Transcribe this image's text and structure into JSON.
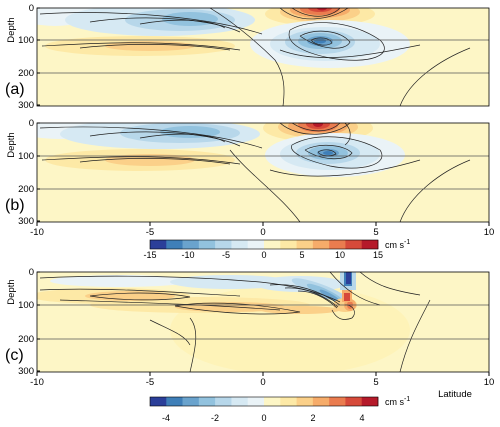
{
  "palette": [
    "#2b3f99",
    "#3f7fb8",
    "#6aa3cd",
    "#92c2de",
    "#b7d7ea",
    "#d6e9f3",
    "#eaf3f7",
    "#fdf6c6",
    "#fde9a6",
    "#fbd089",
    "#f6ac6a",
    "#ea7c4f",
    "#d64a3a",
    "#b51a2a"
  ],
  "chart_data": [
    {
      "panel": "(a)",
      "type": "heatmap",
      "ylabel": "Depth",
      "xlim": [
        -10,
        10
      ],
      "ylim": [
        300,
        0
      ],
      "yticks": [
        "0",
        "100",
        "200",
        "300"
      ],
      "gridlines_y": [
        100,
        200
      ],
      "features": [
        {
          "x": 2.5,
          "depth": 5,
          "value": 14
        },
        {
          "x": -4.5,
          "depth": 25,
          "value": -5
        },
        {
          "x": 2.8,
          "depth": 110,
          "value": -11
        },
        {
          "x": -2.5,
          "depth": 115,
          "value": 4
        }
      ]
    },
    {
      "panel": "(b)",
      "type": "heatmap",
      "ylabel": "Depth",
      "xlim": [
        -10,
        10
      ],
      "ylim": [
        300,
        0
      ],
      "xticks": [
        "-10",
        "-5",
        "0",
        "5",
        "10"
      ],
      "yticks": [
        "0",
        "100",
        "200",
        "300"
      ],
      "gridlines_y": [
        100,
        200
      ],
      "features": [
        {
          "x": 2.3,
          "depth": 10,
          "value": 13
        },
        {
          "x": -4.5,
          "depth": 35,
          "value": -5
        },
        {
          "x": 3.2,
          "depth": 95,
          "value": -11
        },
        {
          "x": -2.7,
          "depth": 120,
          "value": 4
        }
      ]
    },
    {
      "panel": "(c)",
      "type": "heatmap",
      "ylabel": "Depth",
      "xlabel": "Latitude",
      "xlim": [
        -10,
        10
      ],
      "ylim": [
        300,
        0
      ],
      "xticks": [
        "-10",
        "-5",
        "0",
        "5",
        "10"
      ],
      "yticks": [
        "0",
        "100",
        "200",
        "300"
      ],
      "gridlines_y": [
        100,
        200
      ],
      "features": [
        {
          "x": 3.8,
          "depth": 40,
          "value": -4.5
        },
        {
          "x": 3.8,
          "depth": 100,
          "value": 2.5
        },
        {
          "x": 2.8,
          "depth": 80,
          "value": -3
        },
        {
          "x": -4.5,
          "depth": 75,
          "value": 2
        }
      ]
    }
  ],
  "colorbars": [
    {
      "ticks": [
        "-15",
        "-10",
        "-5",
        "0",
        "5",
        "10",
        "15"
      ],
      "unit": "cm s",
      "unit_exp": "-1"
    },
    {
      "ticks": [
        "-4",
        "-2",
        "0",
        "2",
        "4"
      ],
      "unit": "cm s",
      "unit_exp": "-1"
    }
  ]
}
